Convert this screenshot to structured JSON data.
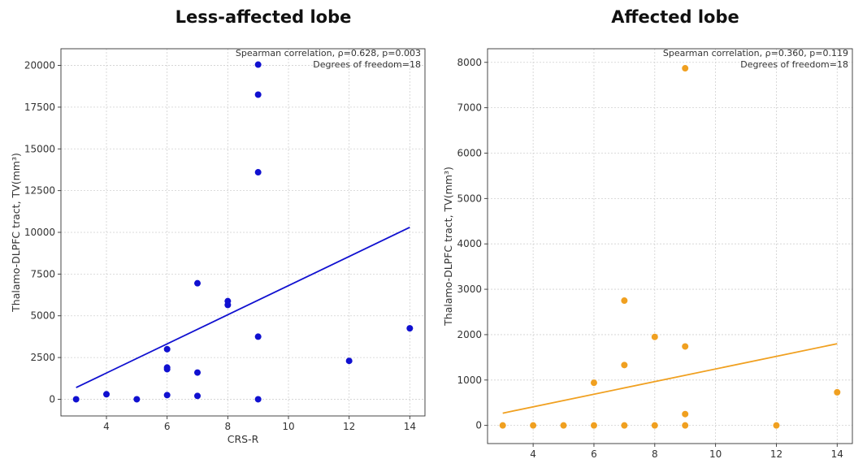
{
  "chart_data": [
    {
      "type": "scatter",
      "title": "Less-affected lobe",
      "xlabel": "CRS-R",
      "ylabel": "Thalamo-DLPFC tract, TV(mm³)",
      "annotation_lines": [
        "Spearman correlation, ρ=0.628, p=0.003",
        "Degrees of freedom=18"
      ],
      "xlim": [
        2.5,
        14.5
      ],
      "ylim": [
        -1000,
        21000
      ],
      "xticks": [
        4,
        6,
        8,
        10,
        12,
        14
      ],
      "yticks": [
        0,
        2500,
        5000,
        7500,
        10000,
        12500,
        15000,
        17500,
        20000
      ],
      "grid": true,
      "color": "#1010d0",
      "points": [
        {
          "x": 3,
          "y": 0
        },
        {
          "x": 4,
          "y": 300
        },
        {
          "x": 5,
          "y": 0
        },
        {
          "x": 6,
          "y": 3000
        },
        {
          "x": 6,
          "y": 1900
        },
        {
          "x": 6,
          "y": 1800
        },
        {
          "x": 6,
          "y": 250
        },
        {
          "x": 7,
          "y": 6950
        },
        {
          "x": 7,
          "y": 1600
        },
        {
          "x": 7,
          "y": 200
        },
        {
          "x": 8,
          "y": 5880
        },
        {
          "x": 8,
          "y": 5650
        },
        {
          "x": 9,
          "y": 20050
        },
        {
          "x": 9,
          "y": 18250
        },
        {
          "x": 9,
          "y": 13600
        },
        {
          "x": 9,
          "y": 3750
        },
        {
          "x": 9,
          "y": 0
        },
        {
          "x": 12,
          "y": 2300
        },
        {
          "x": 14,
          "y": 4250
        }
      ],
      "fit_line": {
        "x": [
          3,
          14
        ],
        "y": [
          700,
          10300
        ]
      }
    },
    {
      "type": "scatter",
      "title": "Affected lobe",
      "xlabel": "CRS-R",
      "ylabel": "Thalamo-DLPFC tract, TV(mm³)",
      "annotation_lines": [
        "Spearman correlation, ρ=0.360, p=0.119",
        "Degrees of freedom=18"
      ],
      "xlim": [
        2.5,
        14.5
      ],
      "ylim": [
        -400,
        8300
      ],
      "xticks": [
        4,
        6,
        8,
        10,
        12,
        14
      ],
      "yticks": [
        0,
        1000,
        2000,
        3000,
        4000,
        5000,
        6000,
        7000,
        8000
      ],
      "grid": true,
      "color": "#f0a020",
      "points": [
        {
          "x": 3,
          "y": 0
        },
        {
          "x": 4,
          "y": 0
        },
        {
          "x": 5,
          "y": 0
        },
        {
          "x": 6,
          "y": 940
        },
        {
          "x": 6,
          "y": 0
        },
        {
          "x": 7,
          "y": 2750
        },
        {
          "x": 7,
          "y": 1330
        },
        {
          "x": 7,
          "y": 0
        },
        {
          "x": 8,
          "y": 1950
        },
        {
          "x": 8,
          "y": 0
        },
        {
          "x": 9,
          "y": 7870
        },
        {
          "x": 9,
          "y": 1740
        },
        {
          "x": 9,
          "y": 250
        },
        {
          "x": 9,
          "y": 0
        },
        {
          "x": 12,
          "y": 0
        },
        {
          "x": 14,
          "y": 730
        }
      ],
      "fit_line": {
        "x": [
          3,
          14
        ],
        "y": [
          270,
          1800
        ]
      }
    }
  ]
}
